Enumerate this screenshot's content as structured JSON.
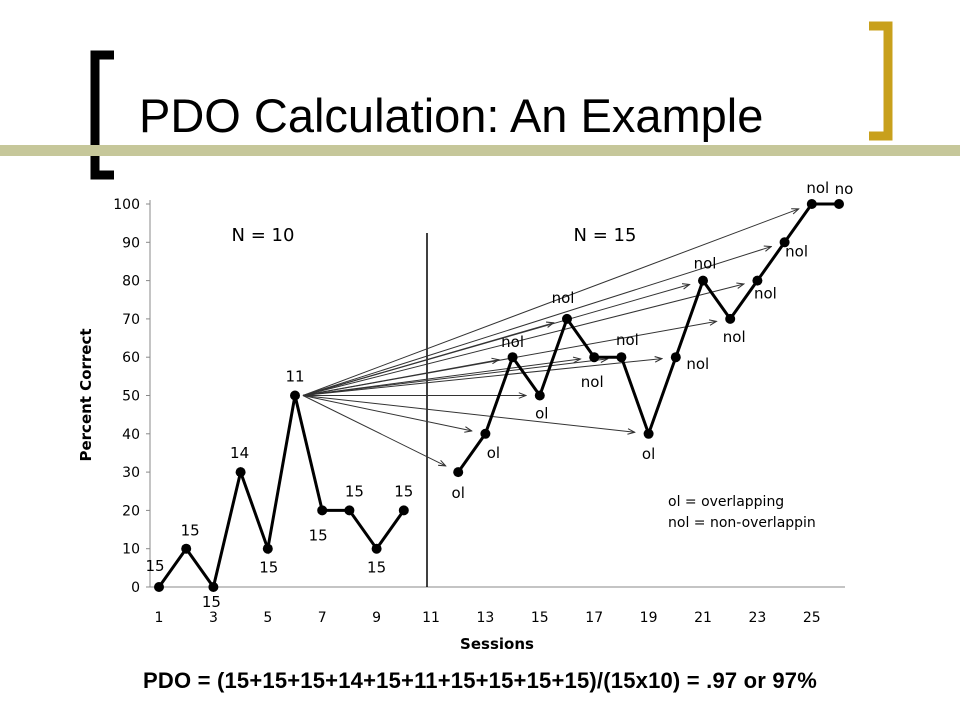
{
  "slide": {
    "title": "PDO Calculation: An Example",
    "formula": "PDO = (15+15+15+14+15+11+15+15+15+15)/(15x10)  = .97 or 97%",
    "bracket_color_left": "#000000",
    "bracket_color_right": "#c8a01c",
    "rule_color": "#c6c79a"
  },
  "chart_data": {
    "type": "line",
    "xlabel": "Sessions",
    "ylabel": "Percent Correct",
    "x_ticks": [
      "1",
      "3",
      "5",
      "7",
      "9",
      "11",
      "13",
      "15",
      "17",
      "19",
      "21",
      "23",
      "25"
    ],
    "y_ticks": [
      "0",
      "10",
      "20",
      "30",
      "40",
      "50",
      "60",
      "70",
      "80",
      "90",
      "100"
    ],
    "xlim": [
      1,
      26
    ],
    "ylim": [
      0,
      100
    ],
    "grid": false,
    "phase_divider_x": 11,
    "phases": [
      {
        "label": "N = 10",
        "sessions": [
          1,
          10
        ]
      },
      {
        "label": "N = 15",
        "sessions": [
          12,
          26
        ]
      }
    ],
    "series": [
      {
        "phase": 1,
        "x": [
          1,
          2,
          3,
          4,
          5,
          6,
          7,
          8,
          9,
          10
        ],
        "y": [
          0,
          10,
          0,
          30,
          10,
          50,
          20,
          20,
          10,
          20
        ],
        "labels": [
          "15",
          "15",
          "15",
          "14",
          "15",
          "11",
          "15",
          "15",
          "15",
          "15"
        ]
      },
      {
        "phase": 2,
        "x": [
          12,
          13,
          14,
          15,
          16,
          17,
          18,
          19,
          20,
          21,
          22,
          23,
          24,
          25,
          26
        ],
        "y": [
          30,
          40,
          60,
          50,
          70,
          60,
          60,
          40,
          60,
          80,
          70,
          80,
          90,
          100,
          100
        ],
        "labels": [
          "ol",
          "ol",
          "nol",
          "ol",
          "nol",
          "nol",
          "nol",
          "ol",
          "nol",
          "nol",
          "nol",
          "nol",
          "nol",
          "nol",
          "no"
        ]
      }
    ],
    "comparison_arrows_from": {
      "x": 6,
      "y": 50
    },
    "legend": [
      "ol = overlapping",
      "nol = non-overlappin"
    ],
    "legend_position": "bottom-right"
  }
}
